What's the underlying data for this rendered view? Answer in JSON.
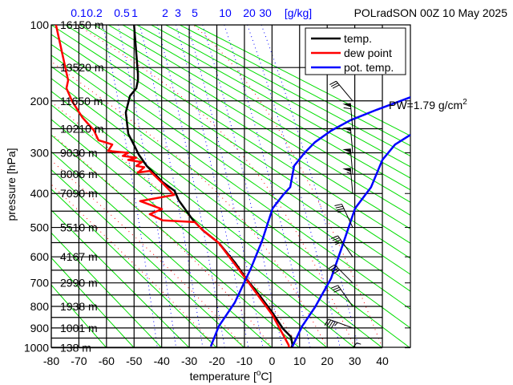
{
  "chart_data": {
    "type": "line",
    "subtype": "thermodynamic-sounding",
    "title": "POLradSON 00Z 10 May 2025",
    "xlabel": "temperature [",
    "xlabel_unit_sup": "o",
    "xlabel_unit_end": "C]",
    "ylabel": "pressure [hPa]",
    "xlim": [
      -80,
      50
    ],
    "ylim": [
      1000,
      100
    ],
    "x_ticks": [
      -80,
      -70,
      -60,
      -50,
      -40,
      -30,
      -20,
      -10,
      0,
      10,
      20,
      30,
      40
    ],
    "y_ticks": [
      100,
      200,
      300,
      400,
      500,
      600,
      700,
      800,
      900,
      1000
    ],
    "grid": true,
    "mixing_ratio_labels": [
      "0.1",
      "0.2",
      "0.5",
      "1",
      "2",
      "3",
      "5",
      "10",
      "20",
      "30"
    ],
    "mixing_ratio_unit": "[g/kg]",
    "mixing_ratio_values": [
      0.1,
      0.2,
      0.5,
      1,
      2,
      3,
      5,
      10,
      20,
      30
    ],
    "height_labels": [
      {
        "p": 100,
        "label": "16150 m"
      },
      {
        "p": 150,
        "label": "13520 m"
      },
      {
        "p": 200,
        "label": "11650 m"
      },
      {
        "p": 250,
        "label": "10210 m"
      },
      {
        "p": 300,
        "label": "9030 m"
      },
      {
        "p": 350,
        "label": "8006 m"
      },
      {
        "p": 400,
        "label": "7090 m"
      },
      {
        "p": 500,
        "label": "5510 m"
      },
      {
        "p": 600,
        "label": "4167 m"
      },
      {
        "p": 700,
        "label": "2990 m"
      },
      {
        "p": 800,
        "label": "1938 m"
      },
      {
        "p": 900,
        "label": "1001 m"
      },
      {
        "p": 1000,
        "label": "138 m"
      }
    ],
    "legend": {
      "placement": "top-right",
      "entries": [
        "temp.",
        "dew point",
        "pot. temp."
      ]
    },
    "pw_label": "PW=1.79 g/cm",
    "pw_sup": "2",
    "series": [
      {
        "name": "temp.",
        "color": "#000000",
        "points": [
          [
            100,
            -50
          ],
          [
            159,
            -48.6
          ],
          [
            168,
            -48.6
          ],
          [
            180,
            -49.2
          ],
          [
            192,
            -51.5
          ],
          [
            220,
            -53
          ],
          [
            260,
            -52.1
          ],
          [
            282,
            -50.1
          ],
          [
            304,
            -48.3
          ],
          [
            330,
            -45.4
          ],
          [
            370,
            -39.6
          ],
          [
            393,
            -35.3
          ],
          [
            419,
            -33.8
          ],
          [
            474,
            -28.9
          ],
          [
            509,
            -25.1
          ],
          [
            551,
            -19.3
          ],
          [
            620,
            -13.5
          ],
          [
            682,
            -9.4
          ],
          [
            748,
            -4.8
          ],
          [
            829,
            0.2
          ],
          [
            904,
            4
          ],
          [
            944,
            6.9
          ],
          [
            985,
            7.4
          ],
          [
            1000,
            7.0
          ]
        ]
      },
      {
        "name": "dew point",
        "color": "#ff0000",
        "points": [
          [
            100,
            -78.3
          ],
          [
            168,
            -73.9
          ],
          [
            180,
            -74.5
          ],
          [
            201,
            -72.4
          ],
          [
            229,
            -68.7
          ],
          [
            253,
            -64.6
          ],
          [
            273,
            -62.9
          ],
          [
            282,
            -57.9
          ],
          [
            296,
            -59.4
          ],
          [
            300,
            -52.1
          ],
          [
            307,
            -54.1
          ],
          [
            311,
            -49.2
          ],
          [
            316,
            -52.1
          ],
          [
            321,
            -47.2
          ],
          [
            330,
            -49.2
          ],
          [
            333,
            -46.3
          ],
          [
            346,
            -48.6
          ],
          [
            342,
            -44.3
          ],
          [
            373,
            -39.6
          ],
          [
            404,
            -35.5
          ],
          [
            421,
            -47.8
          ],
          [
            444,
            -39.9
          ],
          [
            459,
            -44.3
          ],
          [
            478,
            -39.6
          ],
          [
            483,
            -28
          ],
          [
            509,
            -25.1
          ],
          [
            551,
            -19.3
          ],
          [
            685,
            -9.4
          ],
          [
            840,
            0.2
          ],
          [
            985,
            6
          ],
          [
            1000,
            6.2
          ]
        ]
      },
      {
        "name": "pot. temp.",
        "color": "#0000ff",
        "points": [
          [
            993,
            -22.2
          ],
          [
            892,
            -19.3
          ],
          [
            783,
            -13.5
          ],
          [
            644,
            -7.7
          ],
          [
            544,
            -3.6
          ],
          [
            442,
            0.2
          ],
          [
            404,
            4
          ],
          [
            383,
            6.6
          ],
          [
            330,
            8
          ],
          [
            300,
            11.8
          ],
          [
            277,
            15.6
          ],
          [
            254,
            21.4
          ],
          [
            234,
            28.4
          ],
          [
            215,
            38
          ],
          [
            194,
            50.2
          ]
        ]
      },
      {
        "name": "pot. temp. 2",
        "color": "#0000ff",
        "points": [
          [
            993,
            7.4
          ],
          [
            892,
            10.9
          ],
          [
            803,
            15.6
          ],
          [
            682,
            21.4
          ],
          [
            561,
            25.5
          ],
          [
            442,
            30.1
          ],
          [
            383,
            35.9
          ],
          [
            316,
            40
          ],
          [
            282,
            44.6
          ],
          [
            262,
            50.2
          ]
        ]
      }
    ],
    "wind_barbs": [
      {
        "p": 200,
        "dir": 320,
        "speed_kt": 30
      },
      {
        "p": 250,
        "dir": 355,
        "speed_kt": 60
      },
      {
        "p": 300,
        "dir": 355,
        "speed_kt": 55
      },
      {
        "p": 350,
        "dir": 355,
        "speed_kt": 55
      },
      {
        "p": 400,
        "dir": 355,
        "speed_kt": 55
      },
      {
        "p": 500,
        "dir": 335,
        "speed_kt": 40
      },
      {
        "p": 600,
        "dir": 325,
        "speed_kt": 40
      },
      {
        "p": 700,
        "dir": 315,
        "speed_kt": 40
      },
      {
        "p": 800,
        "dir": 325,
        "speed_kt": 30
      },
      {
        "p": 900,
        "dir": 290,
        "speed_kt": 45
      },
      {
        "p": 1000,
        "dir": 40,
        "speed_kt": 5
      }
    ],
    "colors": {
      "dry_adiabat": "#00dd00",
      "mixing_ratio": "#0000ff",
      "moist_adiabat": "#ff0000",
      "grid": "#000000"
    }
  }
}
